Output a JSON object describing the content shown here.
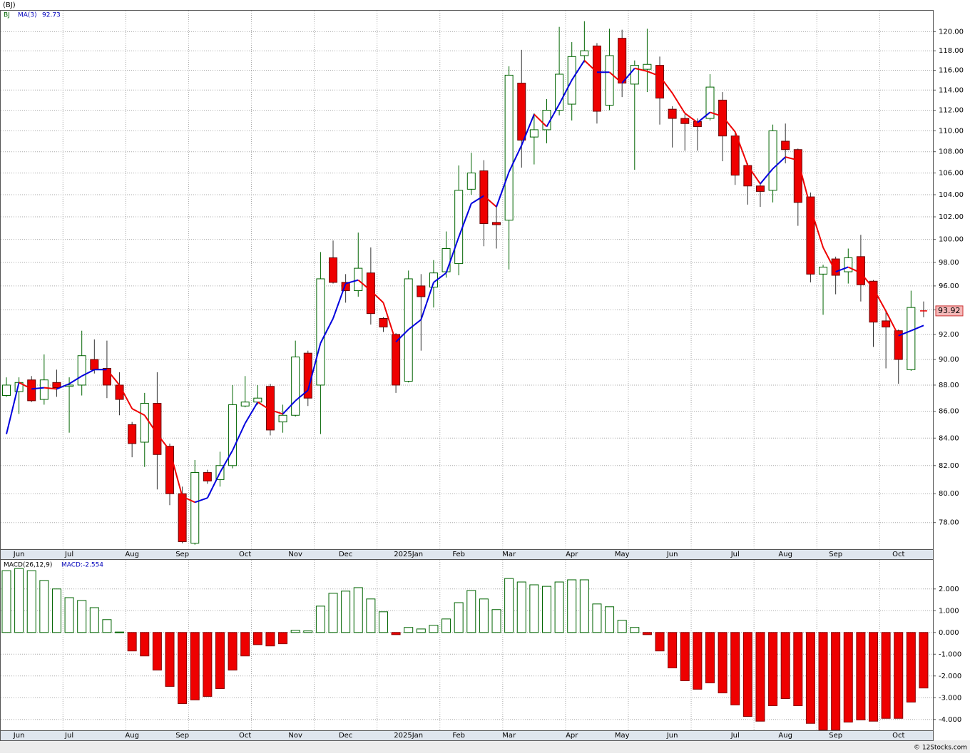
{
  "chart_data": [
    {
      "type": "candlestick",
      "title": "(BJ)",
      "symbol": "BJ",
      "log_scale": true,
      "grid": true,
      "up_color": "#006400",
      "down_color": "#ee0000",
      "categories": [
        null,
        "Jun",
        null,
        null,
        null,
        "Jul",
        null,
        null,
        null,
        null,
        "Aug",
        null,
        null,
        null,
        "Sep",
        null,
        null,
        null,
        null,
        "Oct",
        null,
        null,
        null,
        "Nov",
        null,
        null,
        null,
        "Dec",
        null,
        null,
        null,
        null,
        "2025Jan",
        null,
        null,
        null,
        "Feb",
        null,
        null,
        null,
        "Mar",
        null,
        null,
        null,
        null,
        "Apr",
        null,
        null,
        null,
        "May",
        null,
        null,
        null,
        "Jun",
        null,
        null,
        null,
        null,
        "Jul",
        null,
        null,
        null,
        "Aug",
        null,
        null,
        null,
        "Sep",
        null,
        null,
        null,
        null,
        "Oct",
        null,
        null
      ],
      "open": [
        87.2,
        87.5,
        88.4,
        86.9,
        88.2,
        87.9,
        88.0,
        90.0,
        89.3,
        88.0,
        85.0,
        83.7,
        86.6,
        83.4,
        80.0,
        76.6,
        81.5,
        81.0,
        82.0,
        86.4,
        86.7,
        87.9,
        85.2,
        85.7,
        90.5,
        88.0,
        98.4,
        96.3,
        95.6,
        97.1,
        93.3,
        92.0,
        88.3,
        96.0,
        95.9,
        97.2,
        97.9,
        104.5,
        106.2,
        101.5,
        101.7,
        114.7,
        109.4,
        110.1,
        112.0,
        112.6,
        117.5,
        118.5,
        112.5,
        119.3,
        114.6,
        116.1,
        116.5,
        112.1,
        111.2,
        110.9,
        111.2,
        113.0,
        109.5,
        106.7,
        104.8,
        104.4,
        109.0,
        108.2,
        103.8,
        97.0,
        98.3,
        97.2,
        98.5,
        96.4,
        93.1,
        92.3,
        89.2,
        93.95
      ],
      "high": [
        88.6,
        88.6,
        88.7,
        90.4,
        89.2,
        88.6,
        92.3,
        91.6,
        91.5,
        89.0,
        85.2,
        87.4,
        89.0,
        83.6,
        80.5,
        82.4,
        81.7,
        83.0,
        88.0,
        88.7,
        88.0,
        88.1,
        86.5,
        91.5,
        90.7,
        98.9,
        99.9,
        97.0,
        100.6,
        99.3,
        93.4,
        92.1,
        97.3,
        97.0,
        98.2,
        100.7,
        106.7,
        107.9,
        107.2,
        103.0,
        116.4,
        118.1,
        111.7,
        113.1,
        120.5,
        118.9,
        121.1,
        118.8,
        120.3,
        120.2,
        117.0,
        120.3,
        117.4,
        112.4,
        111.6,
        111.2,
        115.6,
        113.8,
        110.0,
        106.9,
        105.0,
        110.6,
        110.7,
        108.3,
        104.2,
        97.8,
        98.5,
        99.2,
        100.4,
        96.5,
        93.9,
        92.4,
        95.6,
        94.7
      ],
      "low": [
        87.1,
        85.8,
        86.7,
        86.5,
        87.1,
        84.4,
        87.2,
        88.9,
        87.0,
        85.7,
        82.6,
        81.9,
        80.3,
        79.2,
        76.6,
        76.5,
        80.7,
        80.5,
        81.8,
        86.3,
        86.5,
        84.2,
        84.4,
        85.6,
        86.4,
        84.3,
        96.2,
        94.6,
        95.1,
        92.8,
        92.2,
        87.4,
        88.2,
        90.7,
        94.2,
        96.7,
        96.9,
        104.0,
        99.4,
        99.2,
        97.4,
        106.5,
        106.8,
        108.8,
        111.5,
        111.0,
        116.8,
        110.7,
        112.0,
        113.3,
        106.3,
        113.8,
        110.6,
        108.4,
        108.1,
        108.1,
        111.0,
        107.1,
        104.9,
        103.1,
        102.9,
        103.3,
        106.9,
        101.2,
        96.3,
        93.6,
        95.3,
        96.2,
        94.7,
        91.0,
        89.3,
        88.1,
        89.1,
        93.4
      ],
      "close": [
        88.0,
        88.2,
        86.8,
        88.4,
        87.8,
        88.0,
        90.3,
        89.2,
        88.0,
        86.9,
        83.6,
        86.6,
        82.8,
        80.0,
        76.7,
        81.5,
        80.9,
        82.0,
        86.5,
        86.7,
        87.0,
        84.6,
        85.7,
        90.2,
        87.0,
        96.6,
        96.3,
        95.6,
        97.5,
        93.7,
        92.6,
        88.0,
        96.6,
        95.1,
        97.1,
        99.2,
        104.4,
        106.0,
        101.4,
        101.3,
        115.5,
        109.1,
        110.1,
        112.0,
        115.6,
        117.4,
        118.0,
        111.9,
        117.5,
        114.7,
        116.5,
        116.6,
        113.2,
        111.2,
        110.7,
        110.4,
        114.3,
        109.5,
        105.8,
        104.8,
        104.3,
        110.0,
        108.2,
        103.3,
        97.0,
        97.6,
        96.9,
        98.4,
        96.1,
        93.0,
        92.6,
        90.0,
        94.2,
        93.92
      ],
      "series": [
        {
          "name": "MA(3)",
          "up_color": "#0000dd",
          "down_color": "#ee0000",
          "values": [
            84.3,
            88.2,
            87.7,
            87.8,
            87.7,
            88.1,
            88.7,
            89.2,
            89.2,
            88.0,
            86.2,
            85.7,
            84.3,
            83.1,
            79.8,
            79.4,
            79.7,
            81.5,
            83.1,
            85.1,
            86.7,
            86.1,
            85.8,
            86.8,
            87.6,
            91.3,
            93.3,
            96.2,
            96.5,
            95.6,
            94.6,
            91.4,
            92.4,
            93.2,
            96.3,
            97.1,
            100.2,
            103.2,
            103.9,
            102.9,
            106.1,
            108.6,
            111.6,
            110.4,
            112.6,
            115.0,
            117.0,
            115.8,
            115.8,
            114.7,
            116.2,
            115.9,
            115.4,
            113.7,
            111.7,
            110.8,
            111.8,
            111.4,
            109.9,
            106.7,
            105.0,
            106.4,
            107.5,
            107.2,
            102.8,
            99.3,
            97.2,
            97.6,
            97.1,
            95.8,
            93.9,
            91.9,
            92.3,
            92.73
          ]
        }
      ],
      "ylim": [
        76.2,
        122.3
      ],
      "yticks": [
        {
          "value": 78,
          "label": "78.00"
        },
        {
          "value": 80,
          "label": "80.00"
        },
        {
          "value": 82,
          "label": "82.00"
        },
        {
          "value": 84,
          "label": "84.00"
        },
        {
          "value": 86,
          "label": "86.00"
        },
        {
          "value": 88,
          "label": "88.00"
        },
        {
          "value": 90,
          "label": "90.00"
        },
        {
          "value": 92,
          "label": "92.00"
        },
        {
          "value": 94,
          "label": "94.00"
        },
        {
          "value": 96,
          "label": "96.00"
        },
        {
          "value": 98,
          "label": "98.00"
        },
        {
          "value": 100,
          "label": "100.00"
        },
        {
          "value": 102,
          "label": "102.00"
        },
        {
          "value": 104,
          "label": "104.00"
        },
        {
          "value": 106,
          "label": "106.00"
        },
        {
          "value": 108,
          "label": "108.00"
        },
        {
          "value": 110,
          "label": "110.00"
        },
        {
          "value": 112,
          "label": "112.00"
        },
        {
          "value": 114,
          "label": "114.00"
        },
        {
          "value": 116,
          "label": "116.00"
        },
        {
          "value": 118,
          "label": "118.00"
        },
        {
          "value": 120,
          "label": "120.00"
        }
      ]
    },
    {
      "type": "bar",
      "grid": true,
      "up_color": "#006400",
      "down_color": "#ee0000",
      "categories": [
        null,
        "Jun",
        null,
        null,
        null,
        "Jul",
        null,
        null,
        null,
        null,
        "Aug",
        null,
        null,
        null,
        "Sep",
        null,
        null,
        null,
        null,
        "Oct",
        null,
        null,
        null,
        "Nov",
        null,
        null,
        null,
        "Dec",
        null,
        null,
        null,
        null,
        "2025Jan",
        null,
        null,
        null,
        "Feb",
        null,
        null,
        null,
        "Mar",
        null,
        null,
        null,
        null,
        "Apr",
        null,
        null,
        null,
        "May",
        null,
        null,
        null,
        "Jun",
        null,
        null,
        null,
        null,
        "Jul",
        null,
        null,
        null,
        "Aug",
        null,
        null,
        null,
        "Sep",
        null,
        null,
        null,
        null,
        "Oct",
        null,
        null
      ],
      "series": [
        {
          "name": "MACD(26,12,9)",
          "current_label": "MACD:-2.554",
          "values": [
            2.84,
            2.94,
            2.84,
            2.39,
            2.0,
            1.6,
            1.47,
            1.14,
            0.59,
            0.02,
            -0.85,
            -1.08,
            -1.73,
            -2.48,
            -3.27,
            -3.1,
            -2.94,
            -2.58,
            -1.73,
            -1.08,
            -0.56,
            -0.62,
            -0.52,
            0.1,
            0.07,
            1.21,
            1.8,
            1.9,
            2.06,
            1.54,
            0.95,
            -0.1,
            0.23,
            0.16,
            0.33,
            0.62,
            1.37,
            1.93,
            1.54,
            1.05,
            2.48,
            2.32,
            2.19,
            2.12,
            2.32,
            2.42,
            2.42,
            1.31,
            1.18,
            0.56,
            0.23,
            -0.1,
            -0.85,
            -1.63,
            -2.22,
            -2.61,
            -2.32,
            -2.78,
            -3.33,
            -3.86,
            -4.08,
            -3.37,
            -3.04,
            -3.37,
            -4.18,
            -4.48,
            -4.48,
            -4.12,
            -4.02,
            -4.08,
            -3.95,
            -3.95,
            -3.2,
            -2.554
          ]
        }
      ],
      "ylim": [
        -4.5,
        3.37
      ],
      "yticks": [
        {
          "value": -4,
          "label": "-4.000"
        },
        {
          "value": -3,
          "label": "-3.000"
        },
        {
          "value": -2,
          "label": "-2.000"
        },
        {
          "value": -1,
          "label": "-1.000"
        },
        {
          "value": 0,
          "label": "0.000"
        },
        {
          "value": 1,
          "label": "1.000"
        },
        {
          "value": 2,
          "label": "2.000"
        }
      ]
    }
  ],
  "footer": "© 12Stocks.com"
}
